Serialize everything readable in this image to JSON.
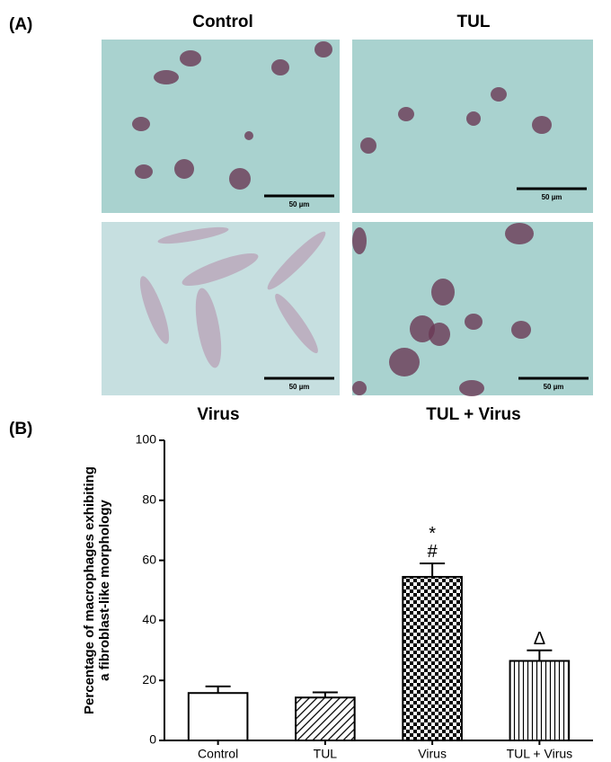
{
  "panel_a": {
    "label": "(A)",
    "images": [
      {
        "title": "Control",
        "scale_bar": "50 µm"
      },
      {
        "title": "TUL",
        "scale_bar": "50 µm"
      },
      {
        "title": "Virus",
        "scale_bar": "50 µm"
      },
      {
        "title": "TUL + Virus",
        "scale_bar": "50 µm"
      }
    ]
  },
  "chart_data": {
    "type": "bar",
    "panel_label": "(B)",
    "ylabel": [
      "Percentage of macrophages exhibiting",
      "a fibroblast-like morphology"
    ],
    "categories": [
      "Control",
      "TUL",
      "Virus",
      "TUL + Virus"
    ],
    "values": [
      15.8,
      14.3,
      54.5,
      26.5
    ],
    "errors": [
      2.2,
      1.7,
      4.5,
      3.5
    ],
    "patterns": [
      "none",
      "diagonal",
      "checker",
      "vertical"
    ],
    "annotations": [
      {
        "text": "#",
        "category": "Virus"
      },
      {
        "text": "*",
        "category": "Virus"
      },
      {
        "text": "Δ",
        "category": "TUL + Virus"
      }
    ],
    "ylim": [
      0,
      100
    ],
    "yticks": [
      0,
      20,
      40,
      60,
      80,
      100
    ]
  }
}
